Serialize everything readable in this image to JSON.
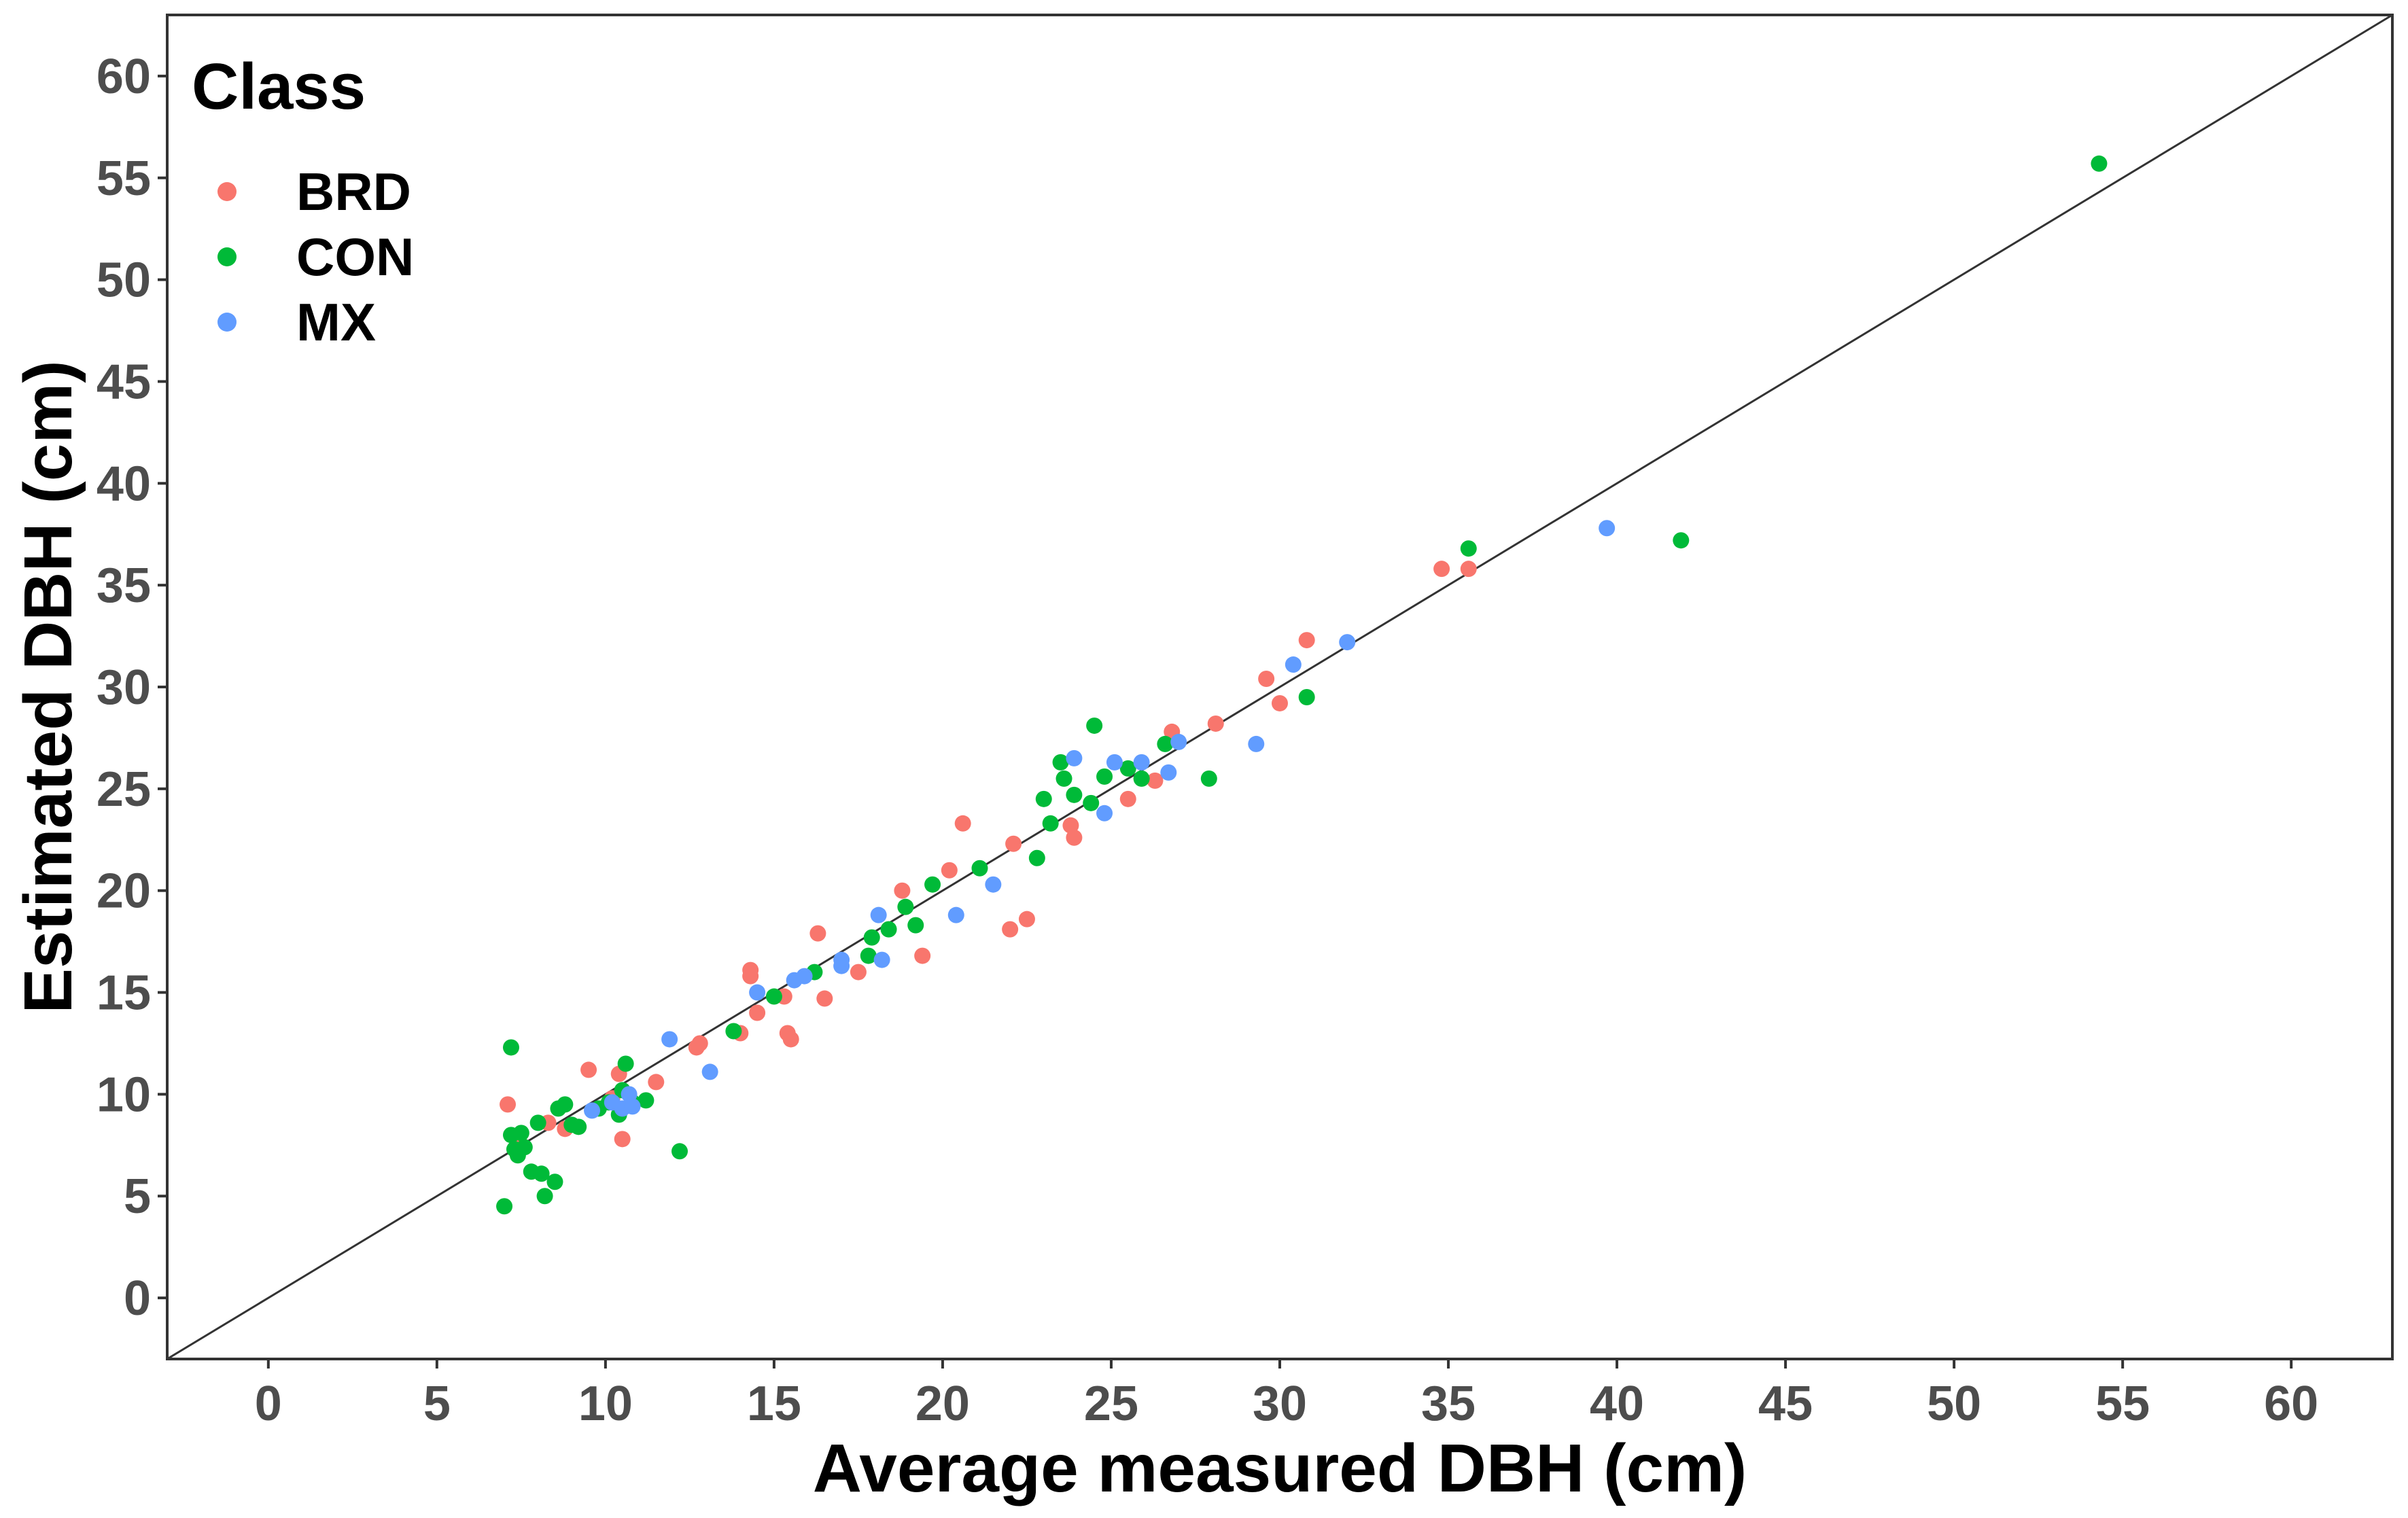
{
  "chart_data": {
    "type": "scatter",
    "title": "",
    "xlabel": "Average measured DBH (cm)",
    "ylabel": "Estimated DBH (cm)",
    "xlim": [
      -3,
      63
    ],
    "ylim": [
      -3,
      63
    ],
    "xticks": [
      0,
      5,
      10,
      15,
      20,
      25,
      30,
      35,
      40,
      45,
      50,
      55,
      60
    ],
    "yticks": [
      0,
      5,
      10,
      15,
      20,
      25,
      30,
      35,
      40,
      45,
      50,
      55,
      60
    ],
    "grid": false,
    "reference_line": "1:1",
    "legend": {
      "title": "Class",
      "position": "top-left"
    },
    "series": [
      {
        "name": "BRD",
        "color": "#F8766D",
        "points": [
          [
            7.1,
            9.5
          ],
          [
            7.5,
            7.5
          ],
          [
            8.3,
            8.6
          ],
          [
            8.8,
            8.3
          ],
          [
            9.5,
            11.2
          ],
          [
            10.2,
            9.8
          ],
          [
            10.4,
            11.0
          ],
          [
            10.5,
            7.8
          ],
          [
            11.5,
            10.6
          ],
          [
            12.8,
            12.5
          ],
          [
            12.7,
            12.3
          ],
          [
            14.0,
            13.0
          ],
          [
            14.3,
            15.8
          ],
          [
            14.3,
            16.1
          ],
          [
            14.5,
            14.0
          ],
          [
            15.3,
            14.8
          ],
          [
            15.4,
            13.0
          ],
          [
            15.5,
            12.7
          ],
          [
            16.3,
            17.9
          ],
          [
            16.5,
            14.7
          ],
          [
            17.5,
            16.0
          ],
          [
            18.8,
            20.0
          ],
          [
            19.4,
            16.8
          ],
          [
            20.2,
            21.0
          ],
          [
            20.6,
            23.3
          ],
          [
            22.0,
            18.1
          ],
          [
            22.1,
            22.3
          ],
          [
            22.5,
            18.6
          ],
          [
            23.8,
            23.2
          ],
          [
            23.9,
            22.6
          ],
          [
            25.5,
            24.5
          ],
          [
            26.3,
            25.4
          ],
          [
            26.8,
            27.8
          ],
          [
            28.1,
            28.2
          ],
          [
            29.6,
            30.4
          ],
          [
            30.0,
            29.2
          ],
          [
            30.8,
            32.3
          ],
          [
            34.8,
            35.8
          ],
          [
            35.6,
            35.8
          ]
        ]
      },
      {
        "name": "CON",
        "color": "#00BA38",
        "points": [
          [
            7.0,
            4.5
          ],
          [
            7.2,
            12.3
          ],
          [
            7.2,
            8.0
          ],
          [
            7.3,
            7.3
          ],
          [
            7.4,
            7.0
          ],
          [
            7.5,
            8.1
          ],
          [
            7.6,
            7.4
          ],
          [
            7.8,
            6.2
          ],
          [
            8.0,
            8.6
          ],
          [
            8.1,
            6.1
          ],
          [
            8.2,
            5.0
          ],
          [
            8.5,
            5.7
          ],
          [
            8.6,
            9.3
          ],
          [
            8.8,
            9.5
          ],
          [
            9.0,
            8.5
          ],
          [
            9.2,
            8.4
          ],
          [
            9.8,
            9.3
          ],
          [
            10.1,
            9.6
          ],
          [
            10.4,
            9.0
          ],
          [
            10.5,
            10.2
          ],
          [
            10.6,
            11.5
          ],
          [
            10.8,
            9.6
          ],
          [
            11.2,
            9.7
          ],
          [
            12.2,
            7.2
          ],
          [
            13.8,
            13.1
          ],
          [
            15.0,
            14.8
          ],
          [
            16.2,
            16.0
          ],
          [
            17.8,
            16.8
          ],
          [
            17.9,
            17.7
          ],
          [
            18.4,
            18.1
          ],
          [
            18.9,
            19.2
          ],
          [
            19.2,
            18.3
          ],
          [
            19.7,
            20.3
          ],
          [
            21.1,
            21.1
          ],
          [
            22.8,
            21.6
          ],
          [
            23.0,
            24.5
          ],
          [
            23.2,
            23.3
          ],
          [
            23.5,
            26.3
          ],
          [
            23.6,
            25.5
          ],
          [
            23.9,
            24.7
          ],
          [
            24.4,
            24.3
          ],
          [
            24.5,
            28.1
          ],
          [
            24.8,
            25.6
          ],
          [
            25.5,
            26.0
          ],
          [
            25.9,
            25.5
          ],
          [
            26.6,
            27.2
          ],
          [
            27.9,
            25.5
          ],
          [
            30.8,
            29.5
          ],
          [
            35.6,
            36.8
          ],
          [
            41.9,
            37.2
          ],
          [
            54.3,
            55.7
          ]
        ]
      },
      {
        "name": "MX",
        "color": "#619CFF",
        "points": [
          [
            9.6,
            9.2
          ],
          [
            10.2,
            9.6
          ],
          [
            10.5,
            9.3
          ],
          [
            10.7,
            10.0
          ],
          [
            10.8,
            9.4
          ],
          [
            11.9,
            12.7
          ],
          [
            13.1,
            11.1
          ],
          [
            14.5,
            15.0
          ],
          [
            15.6,
            15.6
          ],
          [
            15.9,
            15.8
          ],
          [
            17.0,
            16.3
          ],
          [
            17.0,
            16.6
          ],
          [
            18.1,
            18.8
          ],
          [
            18.2,
            16.6
          ],
          [
            20.4,
            18.8
          ],
          [
            21.5,
            20.3
          ],
          [
            23.9,
            26.5
          ],
          [
            24.8,
            23.8
          ],
          [
            25.1,
            26.3
          ],
          [
            25.9,
            26.3
          ],
          [
            26.7,
            25.8
          ],
          [
            27.0,
            27.3
          ],
          [
            29.3,
            27.2
          ],
          [
            30.4,
            31.1
          ],
          [
            32.0,
            32.2
          ],
          [
            39.7,
            37.8
          ]
        ]
      }
    ]
  }
}
